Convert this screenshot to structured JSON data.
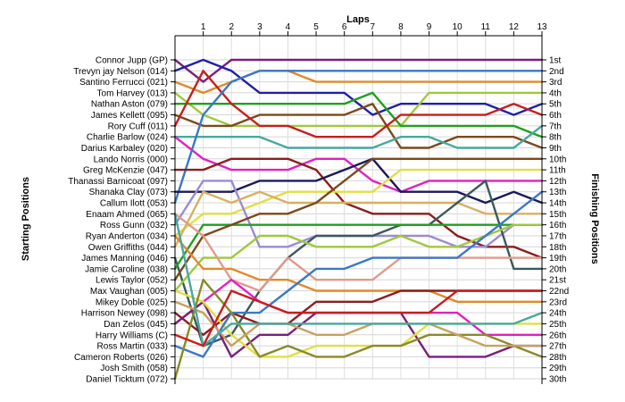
{
  "chart_data": {
    "type": "line",
    "title": "",
    "xlabel": "Laps",
    "ylabel_left": "Starting Positions",
    "ylabel_right": "Finishing Positions",
    "x": [
      0,
      1,
      2,
      3,
      4,
      5,
      6,
      7,
      8,
      9,
      10,
      11,
      12,
      13
    ],
    "x_tick_labels": [
      "1",
      "2",
      "3",
      "4",
      "5",
      "6",
      "7",
      "8",
      "9",
      "10",
      "11",
      "12",
      "13"
    ],
    "ylim": [
      1,
      30
    ],
    "y_inverted": true,
    "grid": true,
    "legend": "none",
    "starting_labels": [
      "Connor Jupp (GP)",
      "Trevyn jay Nelson (014)",
      "Santino Ferrucci (021)",
      "Tom Harvey (013)",
      "Nathan Aston (079)",
      "James Kellett (095)",
      "Rory Cuff (011)",
      "Charlie Barlow (024)",
      "Darius Karbaley (020)",
      "Lando Norris (000)",
      "Greg McKenzie (047)",
      "Thanassi Barnicoat (097)",
      "Shanaka Clay (073)",
      "Callum Ilott (053)",
      "Enaam Ahmed (065)",
      "Ross Gunn (032)",
      "Ryan Anderton (034)",
      "Owen Griffiths (044)",
      "James Manning (046)",
      "Jamie Caroline (038)",
      "Lewis Taylor (052)",
      "Max Vaughan (005)",
      "Mikey Doble (025)",
      "Harrison Newey (098)",
      "Dan Zelos (045)",
      "Harry Williams (C)",
      "Ross Martin (033)",
      "Cameron Roberts (026)",
      "Josh Smith (058)",
      "Daniel Ticktum (072)"
    ],
    "finishing_labels": [
      "1st",
      "2nd",
      "3rd",
      "4th",
      "5th",
      "6th",
      "7th",
      "8th",
      "9th",
      "10th",
      "11th",
      "12th",
      "13th",
      "14th",
      "15th",
      "16th",
      "17th",
      "18th",
      "19th",
      "20th",
      "21st",
      "22nd",
      "23rd",
      "24th",
      "25th",
      "26th",
      "27th",
      "28th",
      "29th",
      "30th"
    ],
    "series": [
      {
        "color": "#7a1f7a",
        "values": [
          1,
          3,
          1,
          1,
          1,
          1,
          1,
          1,
          1,
          1,
          1,
          1,
          1,
          1
        ]
      },
      {
        "color": "#1f1fa8",
        "values": [
          2,
          1,
          2,
          4,
          4,
          4,
          4,
          6,
          5,
          5,
          5,
          5,
          6,
          5
        ]
      },
      {
        "color": "#e08a2a",
        "values": [
          3,
          4,
          3,
          2,
          2,
          3,
          3,
          3,
          3,
          3,
          3,
          3,
          3,
          3
        ]
      },
      {
        "color": "#a0c83c",
        "values": [
          4,
          6,
          7,
          7,
          7,
          7,
          7,
          7,
          7,
          4,
          4,
          4,
          4,
          4
        ]
      },
      {
        "color": "#1fa01f",
        "values": [
          5,
          5,
          5,
          5,
          5,
          5,
          5,
          4,
          7,
          7,
          7,
          7,
          7,
          8
        ]
      },
      {
        "color": "#7a4a1a",
        "values": [
          6,
          7,
          7,
          6,
          6,
          6,
          6,
          5,
          9,
          9,
          8,
          8,
          8,
          9
        ]
      },
      {
        "color": "#c81e1e",
        "values": [
          7,
          2,
          5,
          7,
          7,
          8,
          8,
          8,
          6,
          6,
          6,
          6,
          5,
          6
        ]
      },
      {
        "color": "#48a8a0",
        "values": [
          8,
          8,
          8,
          8,
          9,
          9,
          9,
          9,
          8,
          8,
          9,
          9,
          9,
          7
        ]
      },
      {
        "color": "#e020c0",
        "values": [
          8,
          10,
          11,
          11,
          11,
          10,
          10,
          12,
          13,
          12,
          12,
          12,
          12,
          12
        ]
      },
      {
        "color": "#3a78c8",
        "values": [
          14,
          6,
          3,
          2,
          2,
          2,
          2,
          2,
          2,
          2,
          2,
          2,
          2,
          2
        ]
      },
      {
        "color": "#8a1e1e",
        "values": [
          11,
          11,
          10,
          10,
          10,
          11,
          14,
          15,
          15,
          15,
          17,
          18,
          18,
          19
        ]
      },
      {
        "color": "#1a1a5a",
        "values": [
          13,
          13,
          13,
          12,
          12,
          12,
          11,
          10,
          13,
          13,
          13,
          14,
          13,
          14
        ]
      },
      {
        "color": "#e0e040",
        "values": [
          17,
          15,
          15,
          14,
          13,
          13,
          13,
          13,
          11,
          11,
          11,
          11,
          11,
          11
        ]
      },
      {
        "color": "#9a8ad8",
        "values": [
          16,
          12,
          12,
          18,
          18,
          17,
          17,
          17,
          17,
          17,
          18,
          18,
          16,
          16
        ]
      },
      {
        "color": "#d8b060",
        "values": [
          18,
          13,
          14,
          13,
          14,
          14,
          14,
          14,
          14,
          14,
          14,
          15,
          15,
          15
        ]
      },
      {
        "color": "#3a5a5a",
        "values": [
          19,
          27,
          26,
          22,
          19,
          17,
          17,
          17,
          16,
          16,
          14,
          12,
          20,
          20
        ]
      },
      {
        "color": "#1fa01f",
        "values": [
          20,
          16,
          16,
          16,
          16,
          16,
          16,
          16,
          16,
          16,
          16,
          16,
          16,
          16
        ]
      },
      {
        "color": "#7a4a1a",
        "values": [
          21,
          17,
          16,
          15,
          15,
          14,
          12,
          10,
          10,
          10,
          10,
          10,
          10,
          10
        ]
      },
      {
        "color": "#a0c83c",
        "values": [
          22,
          19,
          19,
          17,
          17,
          18,
          18,
          18,
          17,
          18,
          18,
          17,
          16,
          16
        ]
      },
      {
        "color": "#e08a2a",
        "values": [
          17,
          20,
          20,
          21,
          21,
          22,
          22,
          22,
          22,
          22,
          23,
          23,
          23,
          23
        ]
      },
      {
        "color": "#e09a8a",
        "values": [
          15,
          17,
          21,
          22,
          19,
          21,
          21,
          21,
          19,
          19,
          19,
          19,
          19,
          19
        ]
      },
      {
        "color": "#e020c0",
        "values": [
          25,
          23,
          21,
          23,
          24,
          24,
          24,
          24,
          24,
          24,
          24,
          26,
          26,
          26
        ]
      },
      {
        "color": "#8a1e1e",
        "values": [
          24,
          26,
          24,
          25,
          25,
          23,
          23,
          23,
          22,
          22,
          22,
          22,
          22,
          22
        ]
      },
      {
        "color": "#7a1f7a",
        "values": [
          25,
          23,
          28,
          26,
          26,
          24,
          24,
          24,
          24,
          28,
          28,
          28,
          27,
          27
        ]
      },
      {
        "color": "#e0e040",
        "values": [
          22,
          23,
          26,
          28,
          28,
          27,
          27,
          27,
          27,
          25,
          25,
          25,
          25,
          25
        ]
      },
      {
        "color": "#3a78c8",
        "values": [
          27,
          28,
          24,
          24,
          22,
          20,
          20,
          19,
          19,
          19,
          19,
          17,
          15,
          13
        ]
      },
      {
        "color": "#8a8a2a",
        "values": [
          30,
          21,
          24,
          28,
          27,
          28,
          28,
          27,
          27,
          26,
          26,
          26,
          27,
          28
        ]
      },
      {
        "color": "#c8a060",
        "values": [
          23,
          24,
          27,
          25,
          25,
          26,
          26,
          25,
          25,
          25,
          26,
          27,
          27,
          27
        ]
      },
      {
        "color": "#48a8a0",
        "values": [
          15,
          27,
          25,
          25,
          25,
          25,
          25,
          25,
          25,
          25,
          25,
          25,
          25,
          24
        ]
      },
      {
        "color": "#c81e1e",
        "values": [
          26,
          27,
          22,
          23,
          24,
          24,
          24,
          24,
          24,
          24,
          22,
          22,
          22,
          22
        ]
      }
    ]
  }
}
